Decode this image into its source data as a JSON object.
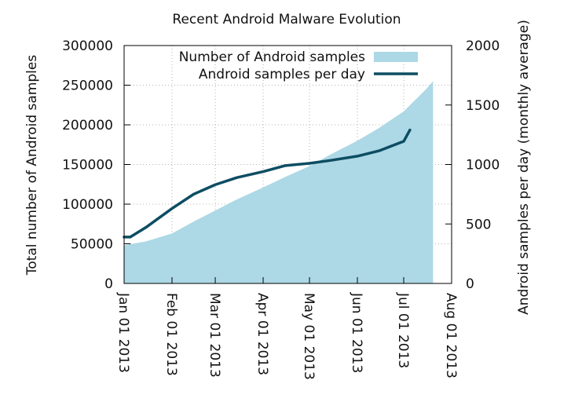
{
  "chart_data": {
    "type": "area",
    "title": "Recent Android Malware Evolution",
    "ylabel": "Total number of Android samples",
    "y2label": "Android samples per day (monthly average)",
    "x_ticks": [
      "Jan 01 2013",
      "Feb 01 2013",
      "Mar 01 2013",
      "Apr 01 2013",
      "May 01 2013",
      "Jun 01 2013",
      "Jul 01 2013",
      "Aug 01 2013"
    ],
    "y_ticks": [
      "0",
      "50000",
      "100000",
      "150000",
      "200000",
      "250000",
      "300000"
    ],
    "y2_ticks": [
      "0",
      "500",
      "1000",
      "1500",
      "2000"
    ],
    "xlim": [
      "2013-01-01",
      "2013-08-01"
    ],
    "ylim": [
      0,
      300000
    ],
    "y2lim": [
      0,
      2000
    ],
    "grid": true,
    "legend_position": "top-right",
    "series": [
      {
        "name": "Number of Android samples",
        "style": "filled-area",
        "axis": "left",
        "color": "#add8e6",
        "x": [
          "2013-01-01",
          "2013-01-15",
          "2013-02-01",
          "2013-02-15",
          "2013-03-01",
          "2013-03-15",
          "2013-04-01",
          "2013-04-15",
          "2013-05-01",
          "2013-05-15",
          "2013-06-01",
          "2013-06-15",
          "2013-07-01",
          "2013-07-15",
          "2013-07-20"
        ],
        "values": [
          48000,
          53000,
          63000,
          78000,
          92000,
          106000,
          121000,
          134000,
          148000,
          163000,
          180000,
          196000,
          217000,
          244000,
          255000
        ]
      },
      {
        "name": "Android samples per day",
        "style": "line",
        "axis": "right",
        "color": "#0d4d63",
        "x": [
          "2013-01-01",
          "2013-01-05",
          "2013-01-15",
          "2013-02-01",
          "2013-02-15",
          "2013-03-01",
          "2013-03-15",
          "2013-04-01",
          "2013-04-15",
          "2013-05-01",
          "2013-05-15",
          "2013-06-01",
          "2013-06-15",
          "2013-07-01",
          "2013-07-05"
        ],
        "values": [
          390,
          390,
          470,
          630,
          750,
          830,
          890,
          940,
          990,
          1010,
          1035,
          1070,
          1115,
          1195,
          1290
        ]
      }
    ]
  }
}
